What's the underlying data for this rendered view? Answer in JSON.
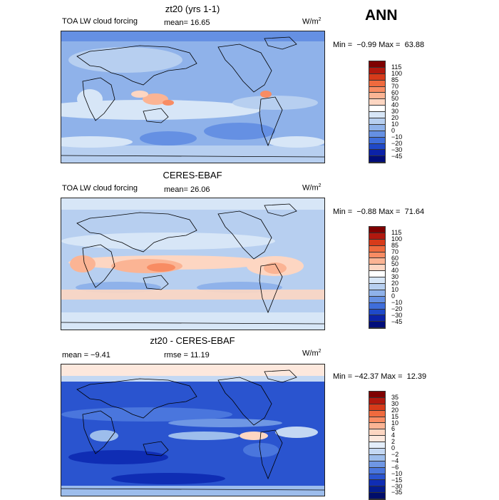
{
  "season": "ANN",
  "units_base": "W/m",
  "units_exp": "2",
  "panels": [
    {
      "title": "zt20 (yrs 1-1)",
      "left_label": "TOA LW cloud forcing",
      "mid_label": "mean=  16.65",
      "minmax": "Min =  −0.99 Max =  63.88",
      "palette": "model"
    },
    {
      "title": "CERES-EBAF",
      "left_label": "TOA LW cloud forcing",
      "mid_label": "mean=  26.06",
      "minmax": "Min =  −0.88 Max =  71.64",
      "palette": "obs"
    },
    {
      "title": "zt20 - CERES-EBAF",
      "left_label": "mean =  −9.41",
      "mid_label": "rmse =  11.19",
      "minmax": "Min = −42.37 Max =  12.39",
      "palette": "diff"
    }
  ],
  "colorbars": [
    {
      "labels": [
        "115",
        "100",
        "85",
        "70",
        "60",
        "50",
        "40",
        "30",
        "20",
        "10",
        "0",
        "−10",
        "−20",
        "−30",
        "−45"
      ],
      "colors": [
        "#7f0000",
        "#b2180e",
        "#d73b1a",
        "#ef6a3e",
        "#f88c63",
        "#fbb494",
        "#fdd6c2",
        "#ffffff",
        "#d7e6f7",
        "#b7cff0",
        "#8fb2ea",
        "#6590e3",
        "#3f6edb",
        "#1f49c8",
        "#0b22a8",
        "#000d7a"
      ]
    },
    {
      "labels": [
        "115",
        "100",
        "85",
        "70",
        "60",
        "50",
        "40",
        "30",
        "20",
        "10",
        "0",
        "−10",
        "−20",
        "−30",
        "−45"
      ],
      "colors": [
        "#7f0000",
        "#b2180e",
        "#d73b1a",
        "#ef6a3e",
        "#f88c63",
        "#fbb494",
        "#fdd6c2",
        "#ffffff",
        "#d7e6f7",
        "#b7cff0",
        "#8fb2ea",
        "#6590e3",
        "#3f6edb",
        "#1f49c8",
        "#0b22a8",
        "#000d7a"
      ]
    },
    {
      "labels": [
        "35",
        "30",
        "20",
        "15",
        "10",
        "6",
        "4",
        "2",
        "0",
        "−2",
        "−4",
        "−6",
        "−10",
        "−15",
        "−30",
        "−35"
      ],
      "colors": [
        "#7f0000",
        "#b2180e",
        "#d73b1a",
        "#ef6a3e",
        "#f88c63",
        "#fbb494",
        "#fdd6c2",
        "#fde8dd",
        "#e4eefa",
        "#c4d8f3",
        "#9dbdec",
        "#6f97e4",
        "#4a76dd",
        "#2a54cf",
        "#0f2db4",
        "#041c8e",
        "#000d6a"
      ]
    }
  ]
}
